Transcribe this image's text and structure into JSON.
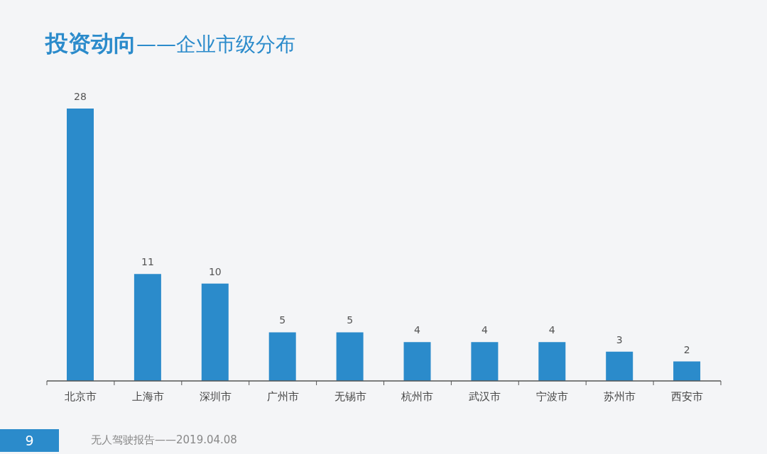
{
  "chart_data": {
    "type": "bar",
    "title": "投资动向",
    "subtitle": "——企业市级分布",
    "categories": [
      "北京市",
      "上海市",
      "深圳市",
      "广州市",
      "无锡市",
      "杭州市",
      "武汉市",
      "宁波市",
      "苏州市",
      "西安市"
    ],
    "values": [
      28,
      11,
      10,
      5,
      5,
      4,
      4,
      4,
      3,
      2
    ],
    "color": "#2b8bcb",
    "data_labels": true,
    "annotations": [
      "9",
      "无人驾驶报告——2019.04.08"
    ]
  }
}
